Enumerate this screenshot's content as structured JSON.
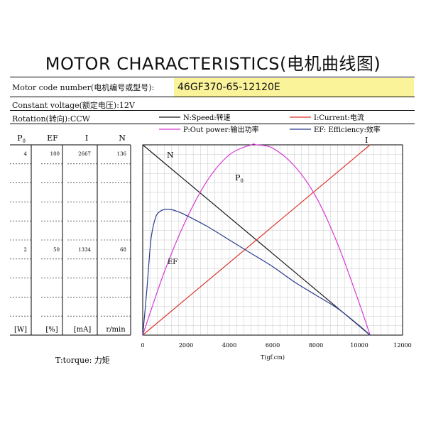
{
  "title": "MOTOR CHARACTERISTICS(电机曲线图)",
  "motor_code": {
    "label": "Motor code number(电机编号或型号):",
    "value": "46GF370-65-12120E"
  },
  "voltage": "Constant voltage(额定电压):12V",
  "rotation": "Rotation(转向):CCW",
  "legend": {
    "speed": "N:Speed:转速",
    "current": "I:Current:电流",
    "power": "P:Out power:输出功率",
    "efficiency": "EF: Efficiency:效率"
  },
  "torque_note": "T:torque: 力矩",
  "colors": {
    "speed": "#1a1a1a",
    "current": "#d9362b",
    "power": "#d63ad6",
    "efficiency": "#2b3a8c",
    "grid": "#c8c8c8"
  },
  "left_axes": {
    "headers": [
      "P",
      "EF",
      "I",
      "N"
    ],
    "p_subscript": "0",
    "top_values": [
      "4",
      "100",
      "2667",
      "136"
    ],
    "mid_values": [
      "2",
      "50",
      "1334",
      "68"
    ],
    "units": [
      "[W]",
      "[%]",
      "[mA]",
      "r/min"
    ]
  },
  "chart_data": {
    "type": "line",
    "xlabel": "T(gf.cm)",
    "xlim": [
      0,
      12000
    ],
    "x_ticks": [
      "0",
      "2000",
      "4000",
      "6000",
      "8000",
      "10000",
      "12000"
    ],
    "curve_labels": {
      "speed": "N",
      "current": "I",
      "power": "P",
      "power_sub": "0",
      "efficiency": "EF"
    },
    "series": [
      {
        "key": "speed",
        "x": [
          0,
          10500
        ],
        "y": [
          136,
          0
        ]
      },
      {
        "key": "current",
        "x": [
          0,
          10500
        ],
        "y": [
          0,
          2667
        ]
      },
      {
        "key": "power",
        "x": [
          0,
          1000,
          2000,
          3000,
          4000,
          5000,
          5250,
          6000,
          7000,
          8000,
          9000,
          10000,
          10500
        ],
        "y": [
          0,
          1.33,
          2.42,
          3.26,
          3.79,
          4.0,
          4.0,
          3.93,
          3.56,
          2.91,
          1.92,
          0.67,
          0
        ]
      },
      {
        "key": "efficiency",
        "x": [
          0,
          100,
          200,
          300,
          400,
          600,
          800,
          1000,
          1300,
          1600,
          2000,
          3000,
          4000,
          5000,
          6000,
          7000,
          8000,
          9000,
          10000,
          10500
        ],
        "y": [
          0,
          12,
          25,
          40,
          52,
          62,
          65,
          66,
          66,
          65,
          63,
          57,
          50,
          43,
          36,
          28,
          21,
          14,
          5,
          0
        ]
      }
    ]
  }
}
